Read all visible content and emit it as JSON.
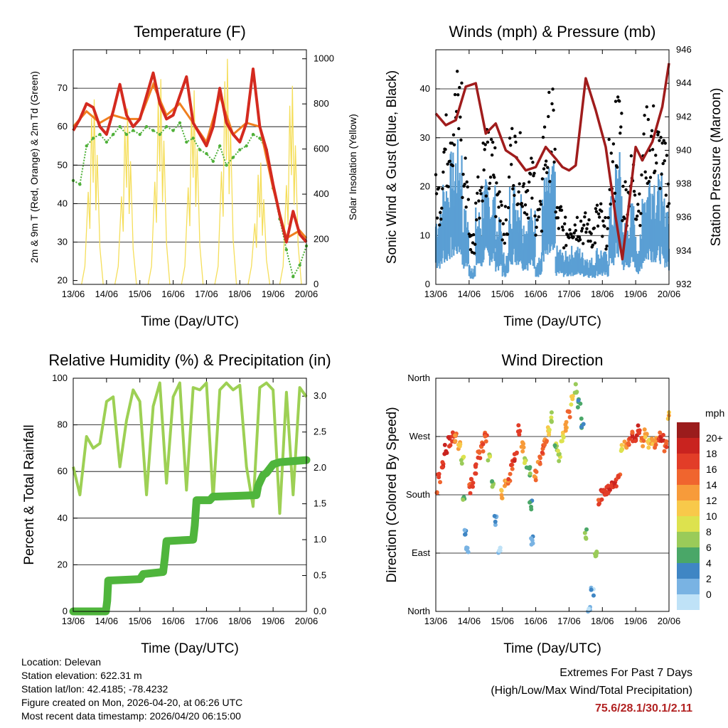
{
  "colors": {
    "temp_red": "#d42a1f",
    "temp_orange": "#f07f1f",
    "dewpoint_green": "#4fb039",
    "solar_yellow": "#f5de5a",
    "gust_black": "#000000",
    "wind_blue": "#5a9fd4",
    "pressure_maroon": "#a01c1c",
    "rh_lightgreen": "#9dd054",
    "precip_green": "#4fb53c",
    "extremes_red": "#b22222"
  },
  "chart_data": [
    {
      "id": "temperature",
      "type": "line",
      "title": "Temperature (F)",
      "xlabel": "Time (Day/UTC)",
      "ylabel": "2m & 9m T (Red, Orange) & 2m Td (Green)",
      "ylabel_right": "Solar Insolation (Yellow)",
      "xlim": [
        0,
        7
      ],
      "ylim": [
        19,
        80
      ],
      "ylim_right": [
        0,
        1040
      ],
      "xticks": [
        "13/06",
        "14/06",
        "15/06",
        "16/06",
        "17/06",
        "18/06",
        "19/06",
        "20/06"
      ],
      "yticks": [
        20,
        30,
        40,
        50,
        60,
        70
      ],
      "yticks_right": [
        0,
        200,
        400,
        600,
        800,
        1000
      ],
      "grid_y": [
        30,
        40,
        50,
        60,
        70
      ],
      "series": [
        {
          "name": "2m T",
          "color_key": "temp_red",
          "style": "line",
          "x": [
            0,
            0.2,
            0.4,
            0.6,
            0.8,
            1.0,
            1.2,
            1.4,
            1.6,
            1.8,
            2.0,
            2.2,
            2.4,
            2.6,
            2.8,
            3.0,
            3.2,
            3.4,
            3.6,
            3.8,
            4.0,
            4.2,
            4.4,
            4.6,
            4.8,
            5.0,
            5.2,
            5.4,
            5.6,
            5.8,
            6.0,
            6.2,
            6.4,
            6.6,
            6.8,
            7.0
          ],
          "values": [
            59,
            62,
            66,
            65,
            60,
            58,
            64,
            71,
            63,
            60,
            62,
            68,
            74,
            66,
            62,
            63,
            68,
            73,
            61,
            58,
            55,
            60,
            70,
            61,
            58,
            56,
            61,
            75,
            60,
            54,
            45,
            37,
            30,
            38,
            32,
            30
          ]
        },
        {
          "name": "9m T",
          "color_key": "temp_orange",
          "style": "line",
          "x": [
            0,
            0.4,
            0.8,
            1.2,
            1.6,
            2.0,
            2.4,
            2.8,
            3.2,
            3.6,
            4.0,
            4.4,
            4.8,
            5.2,
            5.6,
            6.0,
            6.4,
            6.8,
            7.0
          ],
          "values": [
            60,
            64,
            61,
            63,
            62,
            62,
            71,
            63,
            66,
            61,
            56,
            68,
            58,
            61,
            60,
            44,
            31,
            33,
            31
          ]
        },
        {
          "name": "2m Td",
          "color_key": "dewpoint_green",
          "style": "dots",
          "x": [
            0,
            0.2,
            0.4,
            0.6,
            0.8,
            1.0,
            1.2,
            1.4,
            1.6,
            1.8,
            2.0,
            2.2,
            2.4,
            2.6,
            2.8,
            3.0,
            3.2,
            3.4,
            3.6,
            3.8,
            4.0,
            4.2,
            4.4,
            4.6,
            4.8,
            5.0,
            5.2,
            5.4,
            5.6,
            5.8,
            6.0,
            6.2,
            6.4,
            6.6,
            6.8,
            7.0
          ],
          "values": [
            46,
            45,
            55,
            57,
            58,
            56,
            58,
            60,
            58,
            59,
            58,
            60,
            59,
            58,
            60,
            59,
            61,
            56,
            57,
            54,
            53,
            51,
            55,
            50,
            52,
            54,
            55,
            58,
            57,
            54,
            44,
            36,
            28,
            21,
            24,
            29
          ]
        },
        {
          "name": "Solar Insolation",
          "color_key": "solar_yellow",
          "style": "spikes",
          "axis": "right",
          "peaks_x": [
            0.6,
            1.6,
            2.6,
            3.6,
            4.6,
            5.6,
            6.55
          ],
          "peaks_value": [
            820,
            780,
            910,
            860,
            1000,
            540,
            880
          ]
        }
      ]
    },
    {
      "id": "winds",
      "type": "scatter",
      "title": "Winds (mph) & Pressure (mb)",
      "xlabel": "Time (Day/UTC)",
      "ylabel": "Sonic Wind & Gust (Blue, Black)",
      "ylabel_right": "Station Pressure (Maroon)",
      "xlim": [
        0,
        7
      ],
      "ylim": [
        0,
        48
      ],
      "ylim_right": [
        932,
        946
      ],
      "xticks": [
        "13/06",
        "14/06",
        "15/06",
        "16/06",
        "17/06",
        "18/06",
        "19/06",
        "20/06"
      ],
      "yticks": [
        0,
        10,
        20,
        30,
        40
      ],
      "yticks_right": [
        932,
        934,
        936,
        938,
        940,
        942,
        944,
        946
      ],
      "grid_y": [
        10,
        20,
        30,
        40
      ],
      "series": [
        {
          "name": "Gust",
          "color_key": "gust_black",
          "x": [
            0,
            0.2,
            0.4,
            0.6,
            0.8,
            1.0,
            1.2,
            1.4,
            1.6,
            1.8,
            2.0,
            2.2,
            2.4,
            2.6,
            2.8,
            3.0,
            3.2,
            3.4,
            3.6,
            3.8,
            4.0,
            4.2,
            4.4,
            4.6,
            4.8,
            5.0,
            5.2,
            5.4,
            5.6,
            5.8,
            6.0,
            6.2,
            6.4,
            6.6,
            6.8,
            7.0
          ],
          "values": [
            20,
            31,
            37,
            40,
            24,
            10,
            22,
            28,
            27,
            20,
            14,
            30,
            27,
            22,
            23,
            15,
            31,
            35,
            15,
            12,
            14,
            14,
            13,
            12,
            15,
            12,
            26,
            36,
            20,
            24,
            20,
            32,
            33,
            30,
            26,
            18
          ]
        },
        {
          "name": "Sonic Wind",
          "color_key": "wind_blue",
          "x": [
            0,
            0.2,
            0.4,
            0.6,
            0.8,
            1.0,
            1.2,
            1.4,
            1.6,
            1.8,
            2.0,
            2.2,
            2.4,
            2.6,
            2.8,
            3.0,
            3.2,
            3.4,
            3.6,
            3.8,
            4.0,
            4.2,
            4.4,
            4.6,
            4.8,
            5.0,
            5.2,
            5.4,
            5.6,
            5.8,
            6.0,
            6.2,
            6.4,
            6.6,
            6.8,
            7.0
          ],
          "values": [
            14,
            20,
            24,
            26,
            14,
            4,
            14,
            19,
            18,
            12,
            6,
            19,
            18,
            13,
            14,
            6,
            20,
            22,
            7,
            6,
            7,
            7,
            6,
            5,
            7,
            6,
            16,
            24,
            12,
            15,
            9,
            20,
            22,
            20,
            16,
            10
          ]
        },
        {
          "name": "Pressure",
          "color_key": "pressure_maroon",
          "style": "line",
          "axis": "right",
          "x": [
            0,
            0.3,
            0.6,
            0.9,
            1.2,
            1.5,
            1.8,
            2.1,
            2.4,
            2.7,
            3.0,
            3.3,
            3.6,
            3.8,
            4.0,
            4.2,
            4.5,
            4.8,
            5.1,
            5.4,
            5.6,
            5.8,
            6.0,
            6.2,
            6.5,
            6.8,
            7.0
          ],
          "values": [
            942.2,
            941.5,
            941.8,
            943.8,
            944.0,
            941.0,
            941.6,
            940.0,
            939.6,
            938.8,
            939.0,
            940.2,
            939.5,
            939.0,
            938.8,
            939.1,
            944.3,
            942.4,
            940.2,
            936.0,
            933.5,
            936.8,
            940.2,
            939.4,
            940.5,
            942.6,
            945.2
          ]
        }
      ]
    },
    {
      "id": "humidity",
      "type": "line",
      "title": "Relative Humidity (%) & Precipitation (in)",
      "xlabel": "Time (Day/UTC)",
      "ylabel": "Percent & Total Rainfall",
      "xlim": [
        0,
        7
      ],
      "ylim": [
        0,
        100
      ],
      "ylim_right": [
        0,
        3.25
      ],
      "xticks": [
        "13/06",
        "14/06",
        "15/06",
        "16/06",
        "17/06",
        "18/06",
        "19/06",
        "20/06"
      ],
      "yticks": [
        0,
        20,
        40,
        60,
        80,
        100
      ],
      "yticks_right": [
        "0.0",
        "0.5",
        "1.0",
        "1.5",
        "2.0",
        "2.5",
        "3.0"
      ],
      "grid_y": [
        20,
        40,
        60,
        80
      ],
      "series": [
        {
          "name": "Relative Humidity",
          "color_key": "rh_lightgreen",
          "style": "line",
          "x": [
            0,
            0.2,
            0.4,
            0.6,
            0.8,
            1.0,
            1.2,
            1.4,
            1.6,
            1.8,
            2.0,
            2.2,
            2.4,
            2.6,
            2.8,
            3.0,
            3.2,
            3.4,
            3.6,
            3.8,
            4.0,
            4.2,
            4.4,
            4.6,
            4.8,
            5.0,
            5.2,
            5.4,
            5.6,
            5.8,
            6.0,
            6.2,
            6.4,
            6.6,
            6.8,
            7.0
          ],
          "values": [
            62,
            50,
            75,
            70,
            72,
            90,
            92,
            62,
            82,
            95,
            90,
            50,
            88,
            98,
            55,
            92,
            98,
            52,
            96,
            95,
            98,
            48,
            95,
            98,
            95,
            97,
            62,
            45,
            96,
            98,
            95,
            42,
            94,
            50,
            96,
            92
          ]
        },
        {
          "name": "Total Rainfall",
          "color_key": "precip_green",
          "style": "step",
          "axis": "right",
          "x": [
            0,
            0.98,
            1.02,
            1.05,
            2.0,
            2.1,
            2.7,
            2.75,
            2.8,
            3.6,
            3.65,
            3.7,
            4.1,
            4.2,
            4.3,
            5.5,
            5.55,
            5.6,
            5.7,
            5.8,
            6.0,
            6.2,
            7.0
          ],
          "values": [
            0,
            0,
            0.15,
            0.43,
            0.45,
            0.52,
            0.55,
            0.75,
            0.98,
            1.0,
            1.2,
            1.55,
            1.55,
            1.6,
            1.6,
            1.62,
            1.75,
            1.8,
            1.9,
            1.93,
            2.05,
            2.08,
            2.11
          ]
        }
      ]
    },
    {
      "id": "wind_direction",
      "type": "scatter",
      "title": "Wind Direction",
      "xlabel": "Time (Day/UTC)",
      "ylabel": "Direction (Colored By Speed)",
      "xlim": [
        0,
        7
      ],
      "ylim": [
        0,
        360
      ],
      "xticks": [
        "13/06",
        "14/06",
        "15/06",
        "16/06",
        "17/06",
        "18/06",
        "19/06",
        "20/06"
      ],
      "yticks": [
        "North",
        "East",
        "South",
        "West",
        "North"
      ],
      "grid_y": [
        90,
        180,
        270
      ],
      "x": [
        0,
        0.1,
        0.2,
        0.3,
        0.4,
        0.5,
        0.6,
        0.7,
        0.8,
        0.85,
        0.9,
        0.95,
        1.0,
        1.1,
        1.2,
        1.3,
        1.4,
        1.5,
        1.6,
        1.7,
        1.8,
        1.9,
        2.0,
        2.1,
        2.2,
        2.3,
        2.4,
        2.5,
        2.6,
        2.7,
        2.8,
        2.85,
        2.9,
        3.0,
        3.1,
        3.2,
        3.3,
        3.4,
        3.5,
        3.6,
        3.7,
        3.8,
        3.9,
        4.0,
        4.1,
        4.2,
        4.3,
        4.4,
        4.5,
        4.6,
        4.7,
        4.8,
        4.9,
        5.0,
        5.1,
        5.2,
        5.3,
        5.4,
        5.5,
        5.6,
        5.7,
        5.8,
        5.9,
        6.0,
        6.1,
        6.2,
        6.3,
        6.4,
        6.5,
        6.6,
        6.7,
        6.8,
        6.9,
        7.0
      ],
      "values": [
        185,
        205,
        230,
        250,
        262,
        270,
        268,
        255,
        235,
        180,
        120,
        95,
        190,
        200,
        220,
        240,
        255,
        270,
        240,
        200,
        140,
        95,
        180,
        195,
        205,
        225,
        240,
        280,
        255,
        230,
        215,
        165,
        110,
        210,
        235,
        250,
        260,
        280,
        300,
        255,
        240,
        270,
        285,
        305,
        325,
        345,
        320,
        290,
        120,
        0,
        30,
        90,
        170,
        180,
        185,
        190,
        195,
        200,
        210,
        250,
        260,
        265,
        270,
        265,
        280,
        260,
        275,
        260,
        265,
        260,
        270,
        265,
        255,
        300
      ],
      "speeds": [
        18,
        18,
        20,
        20,
        20,
        19,
        16,
        14,
        10,
        8,
        4,
        2,
        18,
        19,
        20,
        19,
        18,
        17,
        10,
        8,
        4,
        2,
        14,
        15,
        17,
        18,
        19,
        19,
        14,
        9,
        7,
        6,
        3,
        16,
        17,
        18,
        17,
        12,
        10,
        9,
        10,
        12,
        14,
        18,
        12,
        9,
        7,
        6,
        8,
        2,
        3,
        10,
        18,
        20,
        20,
        20,
        20,
        20,
        18,
        12,
        15,
        18,
        19,
        20,
        20,
        16,
        14,
        12,
        14,
        16,
        18,
        20,
        18,
        14
      ],
      "colorbar": {
        "title": "mph",
        "labels": [
          "20+",
          "18",
          "16",
          "14",
          "12",
          "10",
          "8",
          "6",
          "4",
          "2",
          "0"
        ],
        "colors": [
          "#9b1c1c",
          "#c9231f",
          "#e23d28",
          "#f0652e",
          "#f79b3a",
          "#f8c94a",
          "#dde24e",
          "#9acb59",
          "#4aa768",
          "#3f86c4",
          "#79b3e3",
          "#bfe2f7"
        ]
      }
    }
  ],
  "footer": {
    "location": "Location: Delevan",
    "elevation": "Station elevation: 622.31 m",
    "latlon": "Station lat/lon: 42.4185; -78.4232",
    "created": "Figure created on Mon, 2026-04-20, at 06:26 UTC",
    "recent": "Most recent data timestamp: 2026/04/20 06:15:00"
  },
  "extremes": {
    "title": "Extremes For Past 7 Days",
    "subtitle": "(High/Low/Max Wind/Total Precipitation)",
    "values": "75.6/28.1/30.1/2.11"
  }
}
